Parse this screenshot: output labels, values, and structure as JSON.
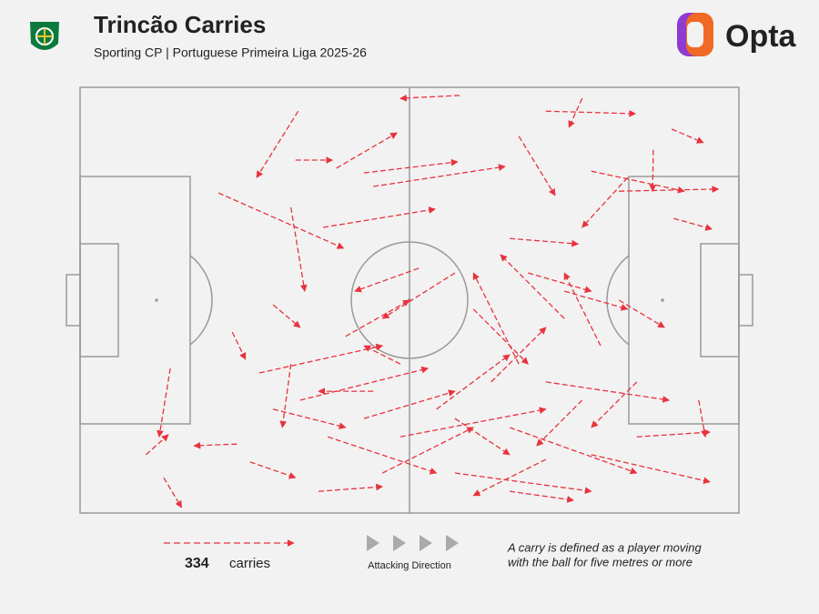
{
  "chart_data": {
    "type": "carry-map",
    "title": "Trincão Carries",
    "subtitle": "Sporting CP | Portuguese Primeira Liga 2025-26",
    "brand": "Opta",
    "total": "334",
    "total_unit": "carries",
    "direction_label": "Attacking Direction",
    "note": [
      "A carry is defined as a player moving",
      "with the ball for five metres or more"
    ],
    "color": "#e8333f",
    "xlim": [
      0,
      100
    ],
    "ylim": [
      0,
      100
    ],
    "carries": {
      "x": [
        57.6,
        33.1,
        32.7,
        38.9,
        21.0,
        32.0,
        13.7,
        10.0,
        12.7,
        23.8,
        25.8,
        76.2,
        70.7,
        89.8,
        77.6,
        81.8,
        90.1,
        87.0,
        43.1,
        44.5,
        36.9,
        66.6,
        83.1,
        65.2,
        56.9,
        51.4,
        23.1,
        29.3,
        27.2,
        33.4,
        36.2,
        48.6,
        56.9,
        65.2,
        70.7,
        77.6,
        84.5,
        93.9,
        66.6,
        73.5,
        79.0,
        62.4,
        54.1,
        43.1,
        45.9,
        37.6,
        32.0,
        29.3,
        65.2,
        70.7,
        84.5,
        81.8,
        73.5,
        68.0,
        59.7,
        76.2,
        56.9,
        48.6,
        40.3,
        44.5
      ],
      "y": [
        98.1,
        94.4,
        82.9,
        81.0,
        75.2,
        71.8,
        34.0,
        13.7,
        8.3,
        16.2,
        12.0,
        97.4,
        94.4,
        90.2,
        80.3,
        75.6,
        69.2,
        85.3,
        79.9,
        76.7,
        67.1,
        88.5,
        78.8,
        64.5,
        56.4,
        57.5,
        42.5,
        48.9,
        32.9,
        26.5,
        5.1,
        17.9,
        9.4,
        20.1,
        30.8,
        13.7,
        17.9,
        26.5,
        35.0,
        45.7,
        39.3,
        30.8,
        24.4,
        22.2,
        9.4,
        17.9,
        35.0,
        24.4,
        5.1,
        12.6,
        30.8,
        50.0,
        52.1,
        56.4,
        47.9,
        26.5,
        22.2,
        35.0,
        41.5,
        28.6
      ],
      "x_end": [
        48.6,
        26.8,
        38.3,
        48.1,
        40.0,
        34.1,
        12.0,
        13.4,
        15.4,
        17.3,
        32.7,
        74.2,
        84.3,
        94.6,
        91.7,
        96.9,
        95.9,
        86.9,
        57.3,
        64.5,
        53.9,
        72.1,
        76.2,
        75.6,
        45.9,
        41.7,
        25.1,
        33.4,
        45.9,
        52.8,
        45.9,
        70.7,
        77.6,
        84.5,
        89.4,
        95.6,
        95.6,
        94.9,
        59.7,
        63.8,
        73.5,
        70.7,
        65.2,
        56.9,
        59.7,
        54.1,
        30.7,
        40.3,
        74.9,
        59.7,
        77.6,
        88.7,
        83.1,
        77.6,
        68.0,
        69.3,
        65.2,
        43.1,
        50.0,
        36.2
      ],
      "y_end": [
        97.4,
        78.8,
        82.9,
        89.3,
        62.2,
        52.1,
        17.9,
        18.4,
        1.3,
        15.8,
        8.3,
        90.6,
        93.8,
        87.0,
        75.6,
        76.1,
        66.7,
        75.6,
        82.5,
        81.4,
        71.4,
        74.6,
        67.1,
        63.2,
        45.7,
        52.1,
        36.1,
        43.6,
        39.3,
        34.0,
        6.2,
        24.4,
        5.1,
        9.4,
        26.5,
        7.3,
        19.0,
        17.9,
        56.4,
        60.7,
        56.4,
        43.6,
        37.2,
        28.6,
        20.1,
        9.4,
        20.1,
        20.1,
        3.0,
        4.1,
        20.1,
        43.6,
        47.9,
        52.1,
        35.0,
        15.8,
        13.7,
        39.3,
        50.0,
        28.6
      ]
    }
  }
}
